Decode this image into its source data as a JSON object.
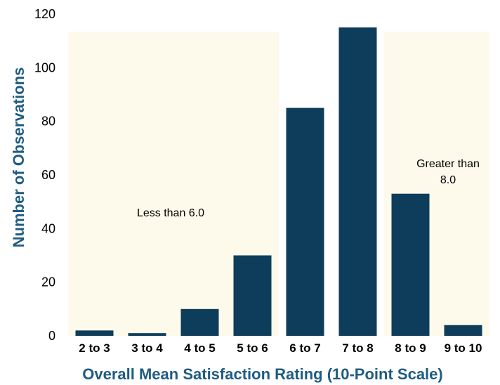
{
  "chart_data": {
    "type": "bar",
    "categories": [
      "2 to 3",
      "3 to 4",
      "4 to 5",
      "5 to 6",
      "6 to 7",
      "7 to 8",
      "8 to 9",
      "9 to 10"
    ],
    "values": [
      2,
      1,
      10,
      30,
      85,
      115,
      53,
      4
    ],
    "xlabel": "Overall Mean Satisfaction Rating (10-Point Scale)",
    "ylabel": "Number of Observations",
    "ylim": [
      0,
      120
    ],
    "yticks": [
      "0",
      "20",
      "40",
      "60",
      "80",
      "100",
      "120"
    ],
    "ytick_values": [
      0,
      20,
      40,
      60,
      80,
      100,
      120
    ],
    "grid": false,
    "annotations": {
      "low": "Less than 6.0",
      "high_line1": "Greater than",
      "high_line2": "8.0"
    },
    "shaded_regions": {
      "low": [
        "2 to 3",
        "5 to 6"
      ],
      "high": [
        "8 to 9",
        "9 to 10"
      ]
    },
    "colors": {
      "bar": "#0d3d5a",
      "region": "#fdfaec",
      "axis_title": "#1f5c82"
    }
  }
}
